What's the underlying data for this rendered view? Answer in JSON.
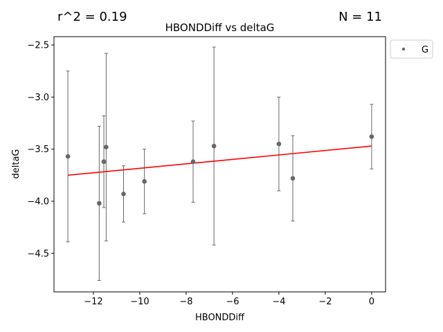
{
  "chart_data": {
    "type": "scatter",
    "title": "HBONDDiff vs deltaG",
    "xlabel": "HBONDDiff",
    "ylabel": "deltaG",
    "annotations": {
      "r2": "r^2 = 0.19",
      "n": "N = 11"
    },
    "xlim": [
      -13.7,
      0.6
    ],
    "ylim": [
      -4.87,
      -2.42
    ],
    "xticks": [
      -12,
      -10,
      -8,
      -6,
      -4,
      -2,
      0
    ],
    "xtick_labels": [
      "−12",
      "−10",
      "−8",
      "−6",
      "−4",
      "−2",
      "0"
    ],
    "yticks": [
      -4.5,
      -4.0,
      -3.5,
      -3.0,
      -2.5
    ],
    "ytick_labels": [
      "−4.5",
      "−4.0",
      "−3.5",
      "−3.0",
      "−2.5"
    ],
    "grid": false,
    "legend": {
      "position": "outside-top-right",
      "entries": [
        "G"
      ]
    },
    "series": [
      {
        "name": "G",
        "color": "#666666",
        "points": [
          {
            "x": -13.1,
            "y": -3.57,
            "err": 0.82
          },
          {
            "x": -11.75,
            "y": -4.02,
            "err": 0.74
          },
          {
            "x": -11.55,
            "y": -3.62,
            "err": 0.44
          },
          {
            "x": -11.45,
            "y": -3.48,
            "err": 0.9
          },
          {
            "x": -10.7,
            "y": -3.93,
            "err": 0.27
          },
          {
            "x": -9.8,
            "y": -3.81,
            "err": 0.31
          },
          {
            "x": -7.7,
            "y": -3.62,
            "err": 0.39
          },
          {
            "x": -6.8,
            "y": -3.47,
            "err": 0.95
          },
          {
            "x": -4.0,
            "y": -3.45,
            "err": 0.45
          },
          {
            "x": -3.4,
            "y": -3.78,
            "err": 0.41
          },
          {
            "x": 0.0,
            "y": -3.38,
            "err": 0.31
          }
        ]
      }
    ],
    "fit_line": {
      "color": "#ff0000",
      "x": [
        -13.1,
        0.0
      ],
      "y": [
        -3.75,
        -3.47
      ]
    }
  }
}
